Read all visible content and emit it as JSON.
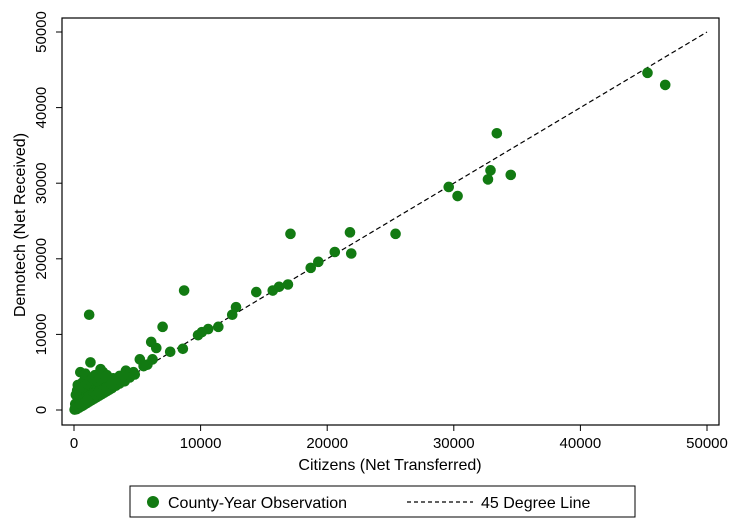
{
  "chart_data": {
    "type": "scatter",
    "title": "",
    "xlabel": "Citizens (Net Transferred)",
    "ylabel": "Demotech (Net Received)",
    "xlim": [
      0,
      50000
    ],
    "ylim": [
      0,
      50000
    ],
    "xticks": [
      "0",
      "10000",
      "20000",
      "30000",
      "40000",
      "50000"
    ],
    "yticks": [
      "0",
      "10000",
      "20000",
      "30000",
      "40000",
      "50000"
    ],
    "grid": false,
    "legend_position": "bottom",
    "legend": [
      {
        "label": "County-Year Observation",
        "marker": "dot"
      },
      {
        "label": "45 Degree Line",
        "marker": "dashed-line"
      }
    ],
    "colors": {
      "points": "#127a12",
      "line": "#000000"
    },
    "series": [
      {
        "name": "County-Year Observation",
        "points": [
          [
            45300,
            44600
          ],
          [
            46700,
            43000
          ],
          [
            33400,
            36600
          ],
          [
            34500,
            31100
          ],
          [
            32900,
            31700
          ],
          [
            32700,
            30500
          ],
          [
            29600,
            29500
          ],
          [
            30300,
            28300
          ],
          [
            25400,
            23300
          ],
          [
            21800,
            23500
          ],
          [
            21900,
            20700
          ],
          [
            20600,
            20900
          ],
          [
            19300,
            19600
          ],
          [
            18700,
            18800
          ],
          [
            17100,
            23300
          ],
          [
            16900,
            16600
          ],
          [
            16200,
            16300
          ],
          [
            15700,
            15800
          ],
          [
            14400,
            15600
          ],
          [
            12800,
            13600
          ],
          [
            12500,
            12600
          ],
          [
            11400,
            11000
          ],
          [
            10600,
            10700
          ],
          [
            10100,
            10300
          ],
          [
            9800,
            9900
          ],
          [
            8700,
            15800
          ],
          [
            8600,
            8100
          ],
          [
            7600,
            7700
          ],
          [
            7000,
            11000
          ],
          [
            6500,
            8200
          ],
          [
            6200,
            6700
          ],
          [
            6100,
            9000
          ],
          [
            5800,
            6000
          ],
          [
            5500,
            5800
          ],
          [
            5200,
            6700
          ],
          [
            1200,
            12600
          ],
          [
            1300,
            6300
          ],
          [
            500,
            5000
          ],
          [
            900,
            4800
          ],
          [
            300,
            3300
          ],
          [
            1600,
            3500
          ],
          [
            2100,
            5400
          ],
          [
            2300,
            5000
          ],
          [
            2600,
            4600
          ],
          [
            3100,
            4200
          ],
          [
            3600,
            4500
          ],
          [
            4100,
            5200
          ],
          [
            4700,
            5000
          ],
          [
            200,
            100
          ],
          [
            400,
            300
          ],
          [
            600,
            500
          ],
          [
            800,
            700
          ],
          [
            1000,
            900
          ],
          [
            1200,
            1100
          ],
          [
            1400,
            1300
          ],
          [
            1600,
            1500
          ],
          [
            1800,
            1700
          ],
          [
            2000,
            1900
          ],
          [
            2200,
            2100
          ],
          [
            2400,
            2300
          ],
          [
            2600,
            2500
          ],
          [
            2800,
            2700
          ],
          [
            3000,
            2900
          ],
          [
            3300,
            3200
          ],
          [
            3600,
            3500
          ],
          [
            4000,
            3800
          ],
          [
            4400,
            4300
          ],
          [
            4800,
            4700
          ],
          [
            100,
            800
          ],
          [
            300,
            1200
          ],
          [
            500,
            1700
          ],
          [
            700,
            2100
          ],
          [
            900,
            2500
          ],
          [
            1100,
            2900
          ],
          [
            1300,
            3200
          ],
          [
            1500,
            2800
          ],
          [
            1700,
            2400
          ],
          [
            1900,
            2900
          ],
          [
            2100,
            3300
          ],
          [
            2300,
            3700
          ],
          [
            2700,
            3600
          ],
          [
            3100,
            3900
          ],
          [
            3500,
            4100
          ],
          [
            3900,
            4600
          ],
          [
            150,
            2000
          ],
          [
            250,
            2600
          ],
          [
            450,
            3000
          ],
          [
            650,
            3600
          ],
          [
            850,
            4000
          ],
          [
            1050,
            3500
          ],
          [
            1250,
            3900
          ],
          [
            1450,
            4200
          ],
          [
            1650,
            4600
          ],
          [
            1850,
            3800
          ],
          [
            2050,
            4200
          ],
          [
            2500,
            4400
          ],
          [
            100,
            300
          ],
          [
            200,
            600
          ],
          [
            350,
            900
          ],
          [
            600,
            1000
          ],
          [
            750,
            1400
          ],
          [
            950,
            1600
          ],
          [
            1150,
            1800
          ],
          [
            1350,
            2000
          ],
          [
            1550,
            2200
          ],
          [
            1750,
            2000
          ],
          [
            1950,
            2400
          ],
          [
            2150,
            2600
          ],
          [
            2350,
            2800
          ],
          [
            2550,
            3000
          ],
          [
            2750,
            3100
          ],
          [
            2950,
            3400
          ],
          [
            50,
            50
          ],
          [
            120,
            200
          ],
          [
            250,
            400
          ],
          [
            380,
            500
          ],
          [
            520,
            800
          ],
          [
            700,
            600
          ],
          [
            880,
            1000
          ],
          [
            1050,
            1300
          ]
        ]
      }
    ],
    "reference_line": {
      "name": "45 Degree Line",
      "from": [
        0,
        0
      ],
      "to": [
        50000,
        50000
      ]
    }
  }
}
